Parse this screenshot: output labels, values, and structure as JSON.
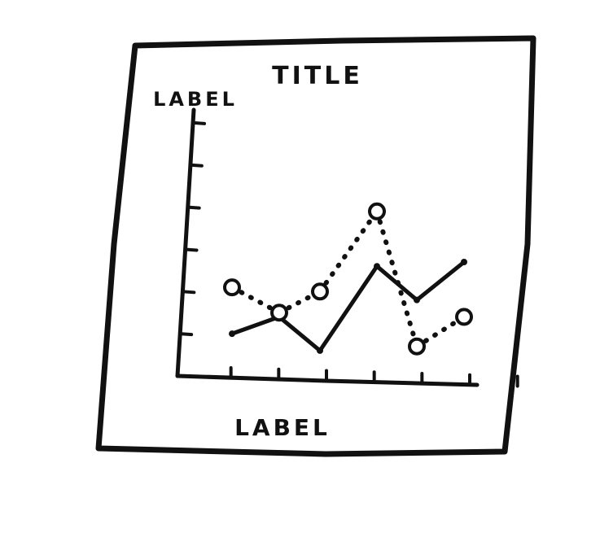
{
  "chart_data": {
    "type": "line",
    "title": "TITLE",
    "xlabel": "LABEL",
    "ylabel": "LABEL",
    "x": [
      1,
      2,
      3,
      4,
      5,
      6,
      7
    ],
    "xlim": [
      0,
      7
    ],
    "ylim": [
      0,
      6.5
    ],
    "y_ticks": [
      1,
      2,
      3,
      4,
      5,
      6
    ],
    "grid": false,
    "legend": "none",
    "series": [
      {
        "style": "solid",
        "marker": "filled",
        "x": [
          1,
          2,
          3,
          4,
          5,
          6,
          7
        ],
        "y": [
          1.0,
          1.4,
          0.6,
          2.6,
          1.8,
          2.7,
          null
        ]
      },
      {
        "style": "dotted",
        "marker": "hollow",
        "x": [
          1,
          2,
          3,
          4,
          5,
          6,
          7
        ],
        "y": [
          2.1,
          1.5,
          2.0,
          3.9,
          0.7,
          1.4,
          null
        ]
      }
    ],
    "colors": {
      "ink": "#111111",
      "paper": "#ffffff"
    }
  }
}
